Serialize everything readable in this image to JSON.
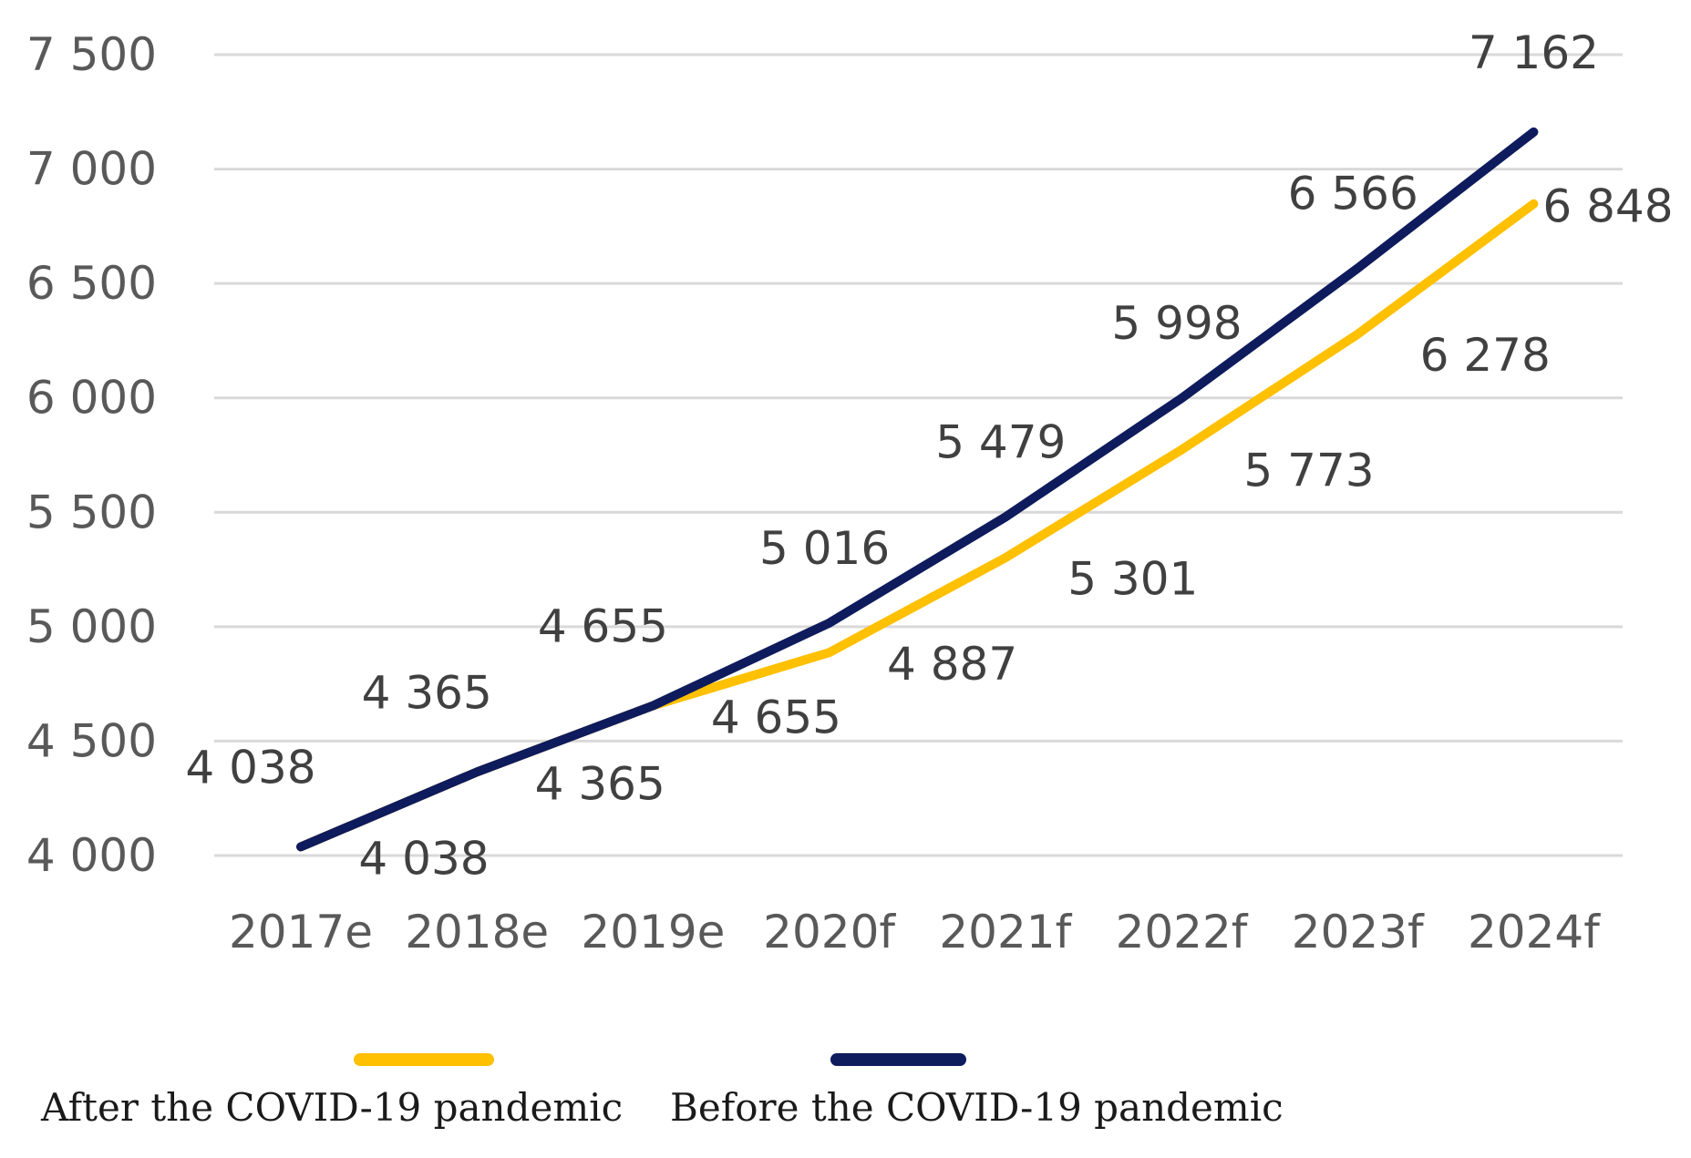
{
  "chart_data": {
    "type": "line",
    "title": "",
    "xlabel": "",
    "ylabel": "",
    "categories": [
      "2017e",
      "2018e",
      "2019e",
      "2020f",
      "2021f",
      "2022f",
      "2023f",
      "2024f"
    ],
    "ylim": [
      4000,
      7500
    ],
    "yticks": [
      4000,
      4500,
      5000,
      5500,
      6000,
      6500,
      7000,
      7500
    ],
    "ytick_labels": [
      "4 000",
      "4 500",
      "5 000",
      "5 500",
      "6 000",
      "6 500",
      "7 000",
      "7 500"
    ],
    "grid": true,
    "legend_position": "bottom",
    "series": [
      {
        "name": "After the COVID-19 pandemic",
        "color": "#FFC000",
        "values": [
          4038,
          4365,
          4655,
          4887,
          5301,
          5773,
          6278,
          6848
        ],
        "labels": [
          "4 038",
          "4 365",
          "4 655",
          "4 887",
          "5 301",
          "5 773",
          "6 278",
          "6 848"
        ]
      },
      {
        "name": "Before the COVID-19 pandemic",
        "color": "#0E1B5C",
        "values": [
          4038,
          4365,
          4655,
          5016,
          5479,
          5998,
          6566,
          7162
        ],
        "labels": [
          "4 038",
          "4 365",
          "4 655",
          "5 016",
          "5 479",
          "5 998",
          "6 566",
          "7 162"
        ]
      }
    ]
  }
}
